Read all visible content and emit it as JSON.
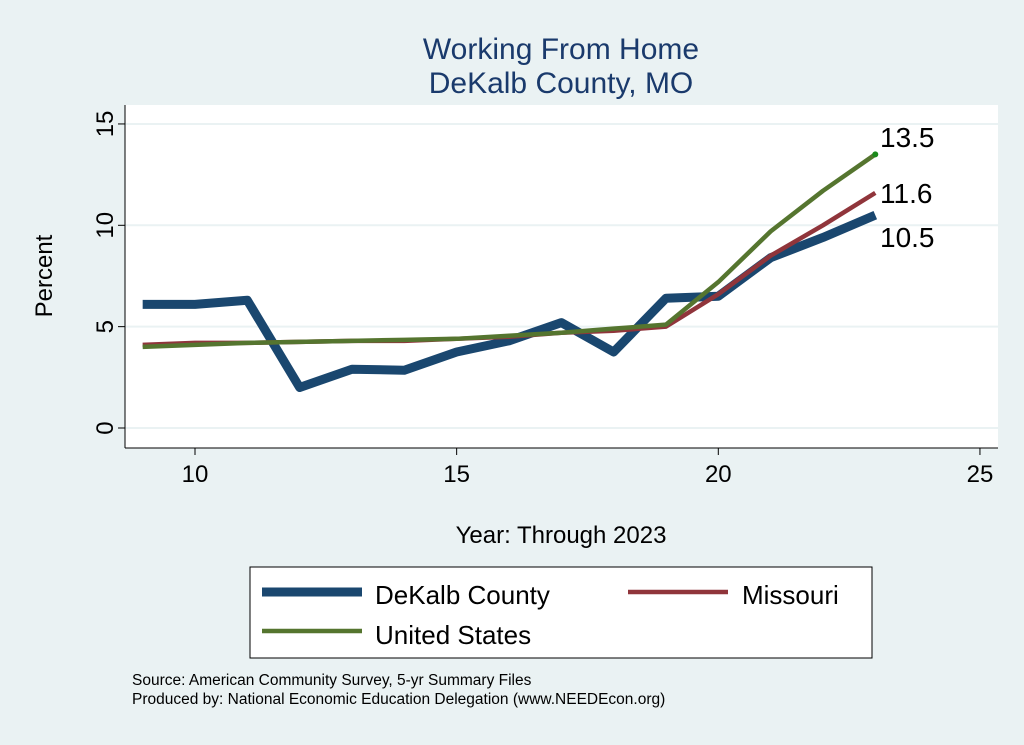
{
  "chart_data": {
    "type": "line",
    "title": [
      "Working From Home",
      "DeKalb County, MO"
    ],
    "xlabel": "Year: Through 2023",
    "ylabel": "Percent",
    "xlim": [
      9,
      25.3
    ],
    "ylim": [
      -0.9,
      16.1
    ],
    "xticks": [
      10,
      15,
      20,
      25
    ],
    "yticks": [
      0,
      5,
      10,
      15
    ],
    "grid": true,
    "legend_position": "bottom",
    "x": [
      9,
      10,
      11,
      12,
      13,
      14,
      15,
      16,
      17,
      18,
      19,
      20,
      21,
      22,
      23
    ],
    "series": [
      {
        "name": "DeKalb County",
        "color": "#1a476f",
        "width": 9,
        "values": [
          6.1,
          6.1,
          6.3,
          2.0,
          2.9,
          2.85,
          3.75,
          4.3,
          5.2,
          3.75,
          6.4,
          6.5,
          8.4,
          9.4,
          10.5
        ]
      },
      {
        "name": "Missouri",
        "color": "#90353b",
        "width": 4.5,
        "values": [
          4.1,
          4.2,
          4.2,
          4.25,
          4.3,
          4.3,
          4.4,
          4.5,
          4.7,
          4.8,
          5.0,
          6.6,
          8.5,
          10.0,
          11.6
        ]
      },
      {
        "name": "United States",
        "color": "#55752f",
        "width": 4.5,
        "values": [
          4.0,
          4.1,
          4.2,
          4.25,
          4.3,
          4.35,
          4.4,
          4.55,
          4.7,
          4.9,
          5.1,
          7.2,
          9.7,
          11.7,
          13.5
        ]
      }
    ],
    "end_labels": [
      "10.5",
      "11.6",
      "13.5"
    ]
  },
  "source": "Source: American Community Survey, 5-yr Summary Files",
  "produced_by": "Produced by: National Economic Education Delegation (www.NEEDEcon.org)"
}
